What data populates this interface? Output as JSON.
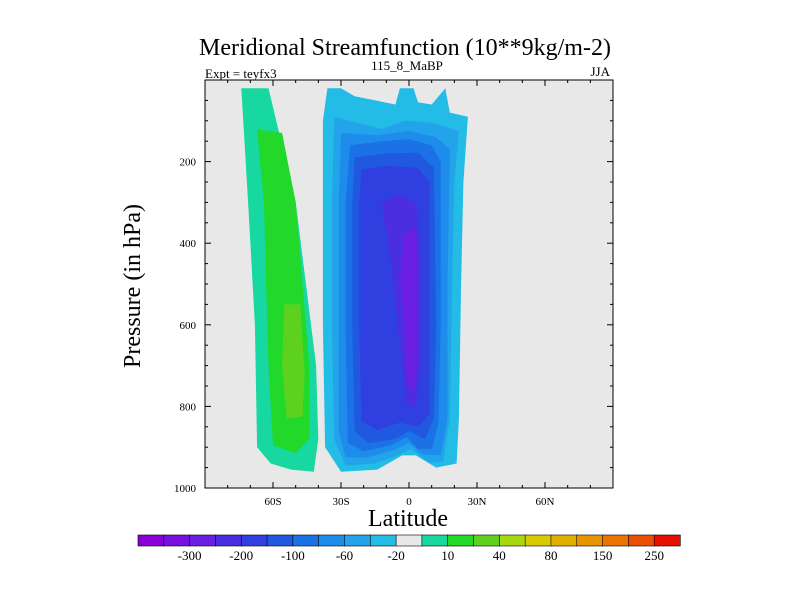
{
  "chart_data": {
    "type": "heatmap",
    "title": "Meridional Streamfunction (10**9kg/m-2)",
    "subtitle_left": "Expt = teyfx3",
    "subtitle_center": "115_8_MaBP",
    "subtitle_right": "JJA",
    "xlabel": "Latitude",
    "ylabel": "Pressure (in hPa)",
    "xlim": [
      -90,
      90
    ],
    "ylim": [
      1000,
      0
    ],
    "x_ticks": [
      {
        "value": -60,
        "label": "60S"
      },
      {
        "value": -30,
        "label": "30S"
      },
      {
        "value": 0,
        "label": "0"
      },
      {
        "value": 30,
        "label": "30N"
      },
      {
        "value": 60,
        "label": "60N"
      }
    ],
    "y_ticks": [
      {
        "value": 200,
        "label": "200"
      },
      {
        "value": 400,
        "label": "400"
      },
      {
        "value": 600,
        "label": "600"
      },
      {
        "value": 800,
        "label": "800"
      },
      {
        "value": 1000,
        "label": "1000"
      }
    ],
    "colorbar": {
      "colors": [
        "#8a00d8",
        "#7a10e0",
        "#6a1fe3",
        "#4a2ee0",
        "#3040e0",
        "#2058e0",
        "#1a72e6",
        "#1e8cea",
        "#23a4ea",
        "#22bce6",
        "#e8e8e8",
        "#16d8a0",
        "#22d82a",
        "#5ed11e",
        "#a8d80f",
        "#d8cc00",
        "#e2b000",
        "#e89400",
        "#ec7400",
        "#ea4e00",
        "#e60f00"
      ],
      "labels": [
        {
          "label": "-300",
          "after_bin": 1
        },
        {
          "label": "-200",
          "after_bin": 3
        },
        {
          "label": "-100",
          "after_bin": 5
        },
        {
          "label": "-60",
          "after_bin": 7
        },
        {
          "label": "-20",
          "after_bin": 9
        },
        {
          "label": "10",
          "after_bin": 11
        },
        {
          "label": "40",
          "after_bin": 13
        },
        {
          "label": "80",
          "after_bin": 15
        },
        {
          "label": "150",
          "after_bin": 17
        },
        {
          "label": "250",
          "after_bin": 19
        }
      ]
    },
    "background_color": "#e8e8e8",
    "cells": {
      "positive_cell_sh": [
        {
          "color": "#16d8a0",
          "level": 10,
          "region": [
            [
              -74,
              20
            ],
            [
              -62,
              20
            ],
            [
              -56,
              160
            ],
            [
              -50,
              300
            ],
            [
              -41,
              700
            ],
            [
              -40,
              880
            ],
            [
              -42,
              960
            ],
            [
              -52,
              955
            ],
            [
              -61,
              940
            ],
            [
              -67,
              900
            ],
            [
              -68,
              600
            ],
            [
              -71,
              300
            ]
          ]
        },
        {
          "color": "#22d82a",
          "level": 20,
          "region": [
            [
              -67,
              120
            ],
            [
              -56,
              130
            ],
            [
              -50,
              300
            ],
            [
              -44,
              700
            ],
            [
              -44,
              880
            ],
            [
              -50,
              915
            ],
            [
              -60,
              895
            ],
            [
              -62,
              700
            ],
            [
              -64,
              300
            ]
          ]
        },
        {
          "color": "#5ed11e",
          "level": 40,
          "region": [
            [
              -55,
              550
            ],
            [
              -48,
              550
            ],
            [
              -46,
              720
            ],
            [
              -47,
              825
            ],
            [
              -54,
              830
            ],
            [
              -56,
              700
            ]
          ]
        }
      ],
      "negative_cell_nh": [
        {
          "color": "#22bce6",
          "level": -10,
          "region": [
            [
              -36,
              20
            ],
            [
              -30,
              20
            ],
            [
              -24,
              40
            ],
            [
              -6,
              60
            ],
            [
              -4,
              20
            ],
            [
              2,
              20
            ],
            [
              4,
              55
            ],
            [
              10,
              60
            ],
            [
              16,
              20
            ],
            [
              18,
              80
            ],
            [
              26,
              90
            ],
            [
              24,
              250
            ],
            [
              23,
              500
            ],
            [
              22,
              830
            ],
            [
              21,
              940
            ],
            [
              12,
              950
            ],
            [
              3,
              920
            ],
            [
              -3,
              920
            ],
            [
              -14,
              955
            ],
            [
              -30,
              960
            ],
            [
              -37,
              900
            ],
            [
              -38,
              600
            ],
            [
              -38,
              300
            ],
            [
              -38,
              100
            ]
          ]
        },
        {
          "color": "#23a4ea",
          "level": -20,
          "region": [
            [
              -33,
              90
            ],
            [
              -12,
              120
            ],
            [
              -2,
              100
            ],
            [
              10,
              105
            ],
            [
              22,
              125
            ],
            [
              20,
              250
            ],
            [
              19,
              500
            ],
            [
              18,
              830
            ],
            [
              15,
              935
            ],
            [
              9,
              938
            ],
            [
              1,
              905
            ],
            [
              -5,
              920
            ],
            [
              -15,
              940
            ],
            [
              -28,
              945
            ],
            [
              -33,
              880
            ],
            [
              -34,
              600
            ],
            [
              -34,
              300
            ]
          ]
        },
        {
          "color": "#1e8cea",
          "level": -30,
          "region": [
            [
              -30,
              130
            ],
            [
              -14,
              135
            ],
            [
              0,
              125
            ],
            [
              12,
              140
            ],
            [
              18,
              170
            ],
            [
              17,
              500
            ],
            [
              17,
              830
            ],
            [
              14,
              920
            ],
            [
              6,
              918
            ],
            [
              0,
              890
            ],
            [
              -6,
              905
            ],
            [
              -18,
              925
            ],
            [
              -28,
              925
            ],
            [
              -31,
              860
            ],
            [
              -31,
              600
            ],
            [
              -31,
              300
            ]
          ]
        },
        {
          "color": "#1a72e6",
          "level": -40,
          "region": [
            [
              -26,
              160
            ],
            [
              -12,
              150
            ],
            [
              0,
              145
            ],
            [
              10,
              160
            ],
            [
              14,
              200
            ],
            [
              14,
              600
            ],
            [
              13,
              840
            ],
            [
              10,
              905
            ],
            [
              4,
              905
            ],
            [
              -1,
              875
            ],
            [
              -8,
              895
            ],
            [
              -20,
              910
            ],
            [
              -27,
              890
            ],
            [
              -28,
              600
            ],
            [
              -28,
              300
            ]
          ]
        },
        {
          "color": "#2058e0",
          "level": -50,
          "region": [
            [
              -24,
              190
            ],
            [
              -10,
              180
            ],
            [
              4,
              178
            ],
            [
              11,
              215
            ],
            [
              12,
              600
            ],
            [
              11,
              830
            ],
            [
              7,
              880
            ],
            [
              0,
              860
            ],
            [
              -6,
              880
            ],
            [
              -18,
              890
            ],
            [
              -24,
              860
            ],
            [
              -25,
              600
            ],
            [
              -25,
              300
            ]
          ]
        },
        {
          "color": "#3040e0",
          "level": -60,
          "region": [
            [
              -21,
              220
            ],
            [
              -10,
              210
            ],
            [
              4,
              215
            ],
            [
              9,
              250
            ],
            [
              9,
              600
            ],
            [
              9,
              820
            ],
            [
              4,
              850
            ],
            [
              -4,
              840
            ],
            [
              -14,
              858
            ],
            [
              -21,
              835
            ],
            [
              -22,
              600
            ],
            [
              -22,
              300
            ]
          ]
        },
        {
          "color": "#4a2ee0",
          "level": -100,
          "region": [
            [
              -12,
              300
            ],
            [
              -5,
              280
            ],
            [
              3,
              300
            ],
            [
              5,
              400
            ],
            [
              5,
              600
            ],
            [
              5,
              720
            ],
            [
              3,
              800
            ],
            [
              -1,
              800
            ],
            [
              -3,
              700
            ],
            [
              -5,
              600
            ],
            [
              -8,
              450
            ]
          ]
        },
        {
          "color": "#6a1fe3",
          "level": -150,
          "region": [
            [
              -2,
              380
            ],
            [
              3,
              360
            ],
            [
              4,
              500
            ],
            [
              4,
              680
            ],
            [
              2,
              770
            ],
            [
              -1,
              740
            ],
            [
              -2,
              600
            ],
            [
              -4,
              480
            ]
          ]
        }
      ]
    }
  }
}
